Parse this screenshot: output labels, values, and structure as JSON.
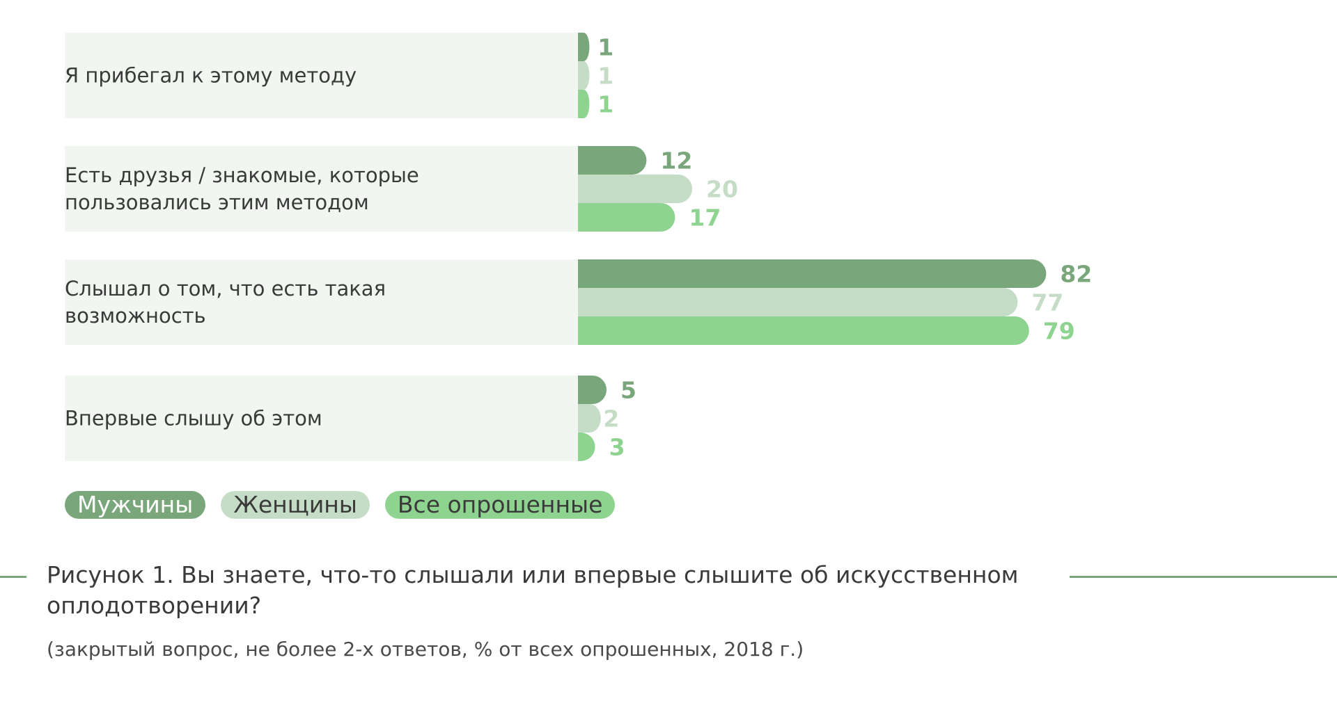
{
  "chart_data": {
    "type": "bar",
    "orientation": "horizontal",
    "categories": [
      [
        "Я прибегал к этому методу"
      ],
      [
        "Есть друзья / знакомые, которые",
        "пользовались этим методом"
      ],
      [
        "Слышал о том, что есть такая",
        "возможность"
      ],
      [
        "Впервые слышу об этом"
      ]
    ],
    "series": [
      {
        "name": "Мужчины",
        "values": [
          1,
          12,
          82,
          5
        ],
        "color": "#7aa67c",
        "label_color": "#7aa67c"
      },
      {
        "name": "Женщины",
        "values": [
          1,
          20,
          77,
          2
        ],
        "color": "#c5dcc6",
        "label_color": "#c5dcc6"
      },
      {
        "name": "Все опрошенные",
        "values": [
          1,
          17,
          79,
          3
        ],
        "color": "#8ed38f",
        "label_color": "#8ed38f"
      }
    ],
    "xlim": [
      0,
      100
    ],
    "legend_position": "bottom-left"
  },
  "caption": {
    "title": "Рисунок 1. Вы знаете, что-то слышали или впервые слышите об искусственном оплодотворении?",
    "subtitle": "(закрытый вопрос, не более 2-х ответов, % от всех опрошенных, 2018 г.)"
  },
  "colors": {
    "row_background": "#f1f6f1",
    "text": "#3a3a3a",
    "rule": "#7aa67c"
  }
}
